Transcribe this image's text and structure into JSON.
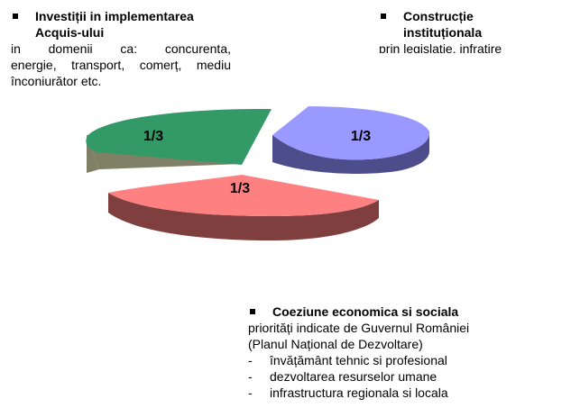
{
  "left_block": {
    "heading_line1": "Investiții in implementarea",
    "heading_line2": "Acquis-ului",
    "body_line1": "in domenii ca: concurenta,",
    "body_line2": "energie, transport, comerț, mediu",
    "body_line3": "înconiurător etc."
  },
  "right_block": {
    "heading_line1": "Construcție",
    "heading_line2": "instituționala",
    "body_line1": "prin legislatie, infratire"
  },
  "bottom_block": {
    "heading": "Coeziune economica si sociala",
    "body_line1": "priorități indicate de Guvernul României",
    "body_line2": "(Planul Național de Dezvoltare)",
    "items": [
      {
        "dash": "-",
        "text": "învățământ tehnic si profesional"
      },
      {
        "dash": "-",
        "text": "dezvoltarea resurselor umane"
      },
      {
        "dash": "-",
        "text": "infrastructura regionala si locala"
      }
    ]
  },
  "chart_data": {
    "type": "pie",
    "style": "3d-exploded",
    "slices": [
      {
        "label": "1/3",
        "value": 0.3333,
        "color": "#339966",
        "side_color": "#808066"
      },
      {
        "label": "1/3",
        "value": 0.3333,
        "color": "#9999ff",
        "side_color": "#4d4d8c"
      },
      {
        "label": "1/3",
        "value": 0.3333,
        "color": "#ff8080",
        "side_color": "#803f3f"
      }
    ]
  }
}
